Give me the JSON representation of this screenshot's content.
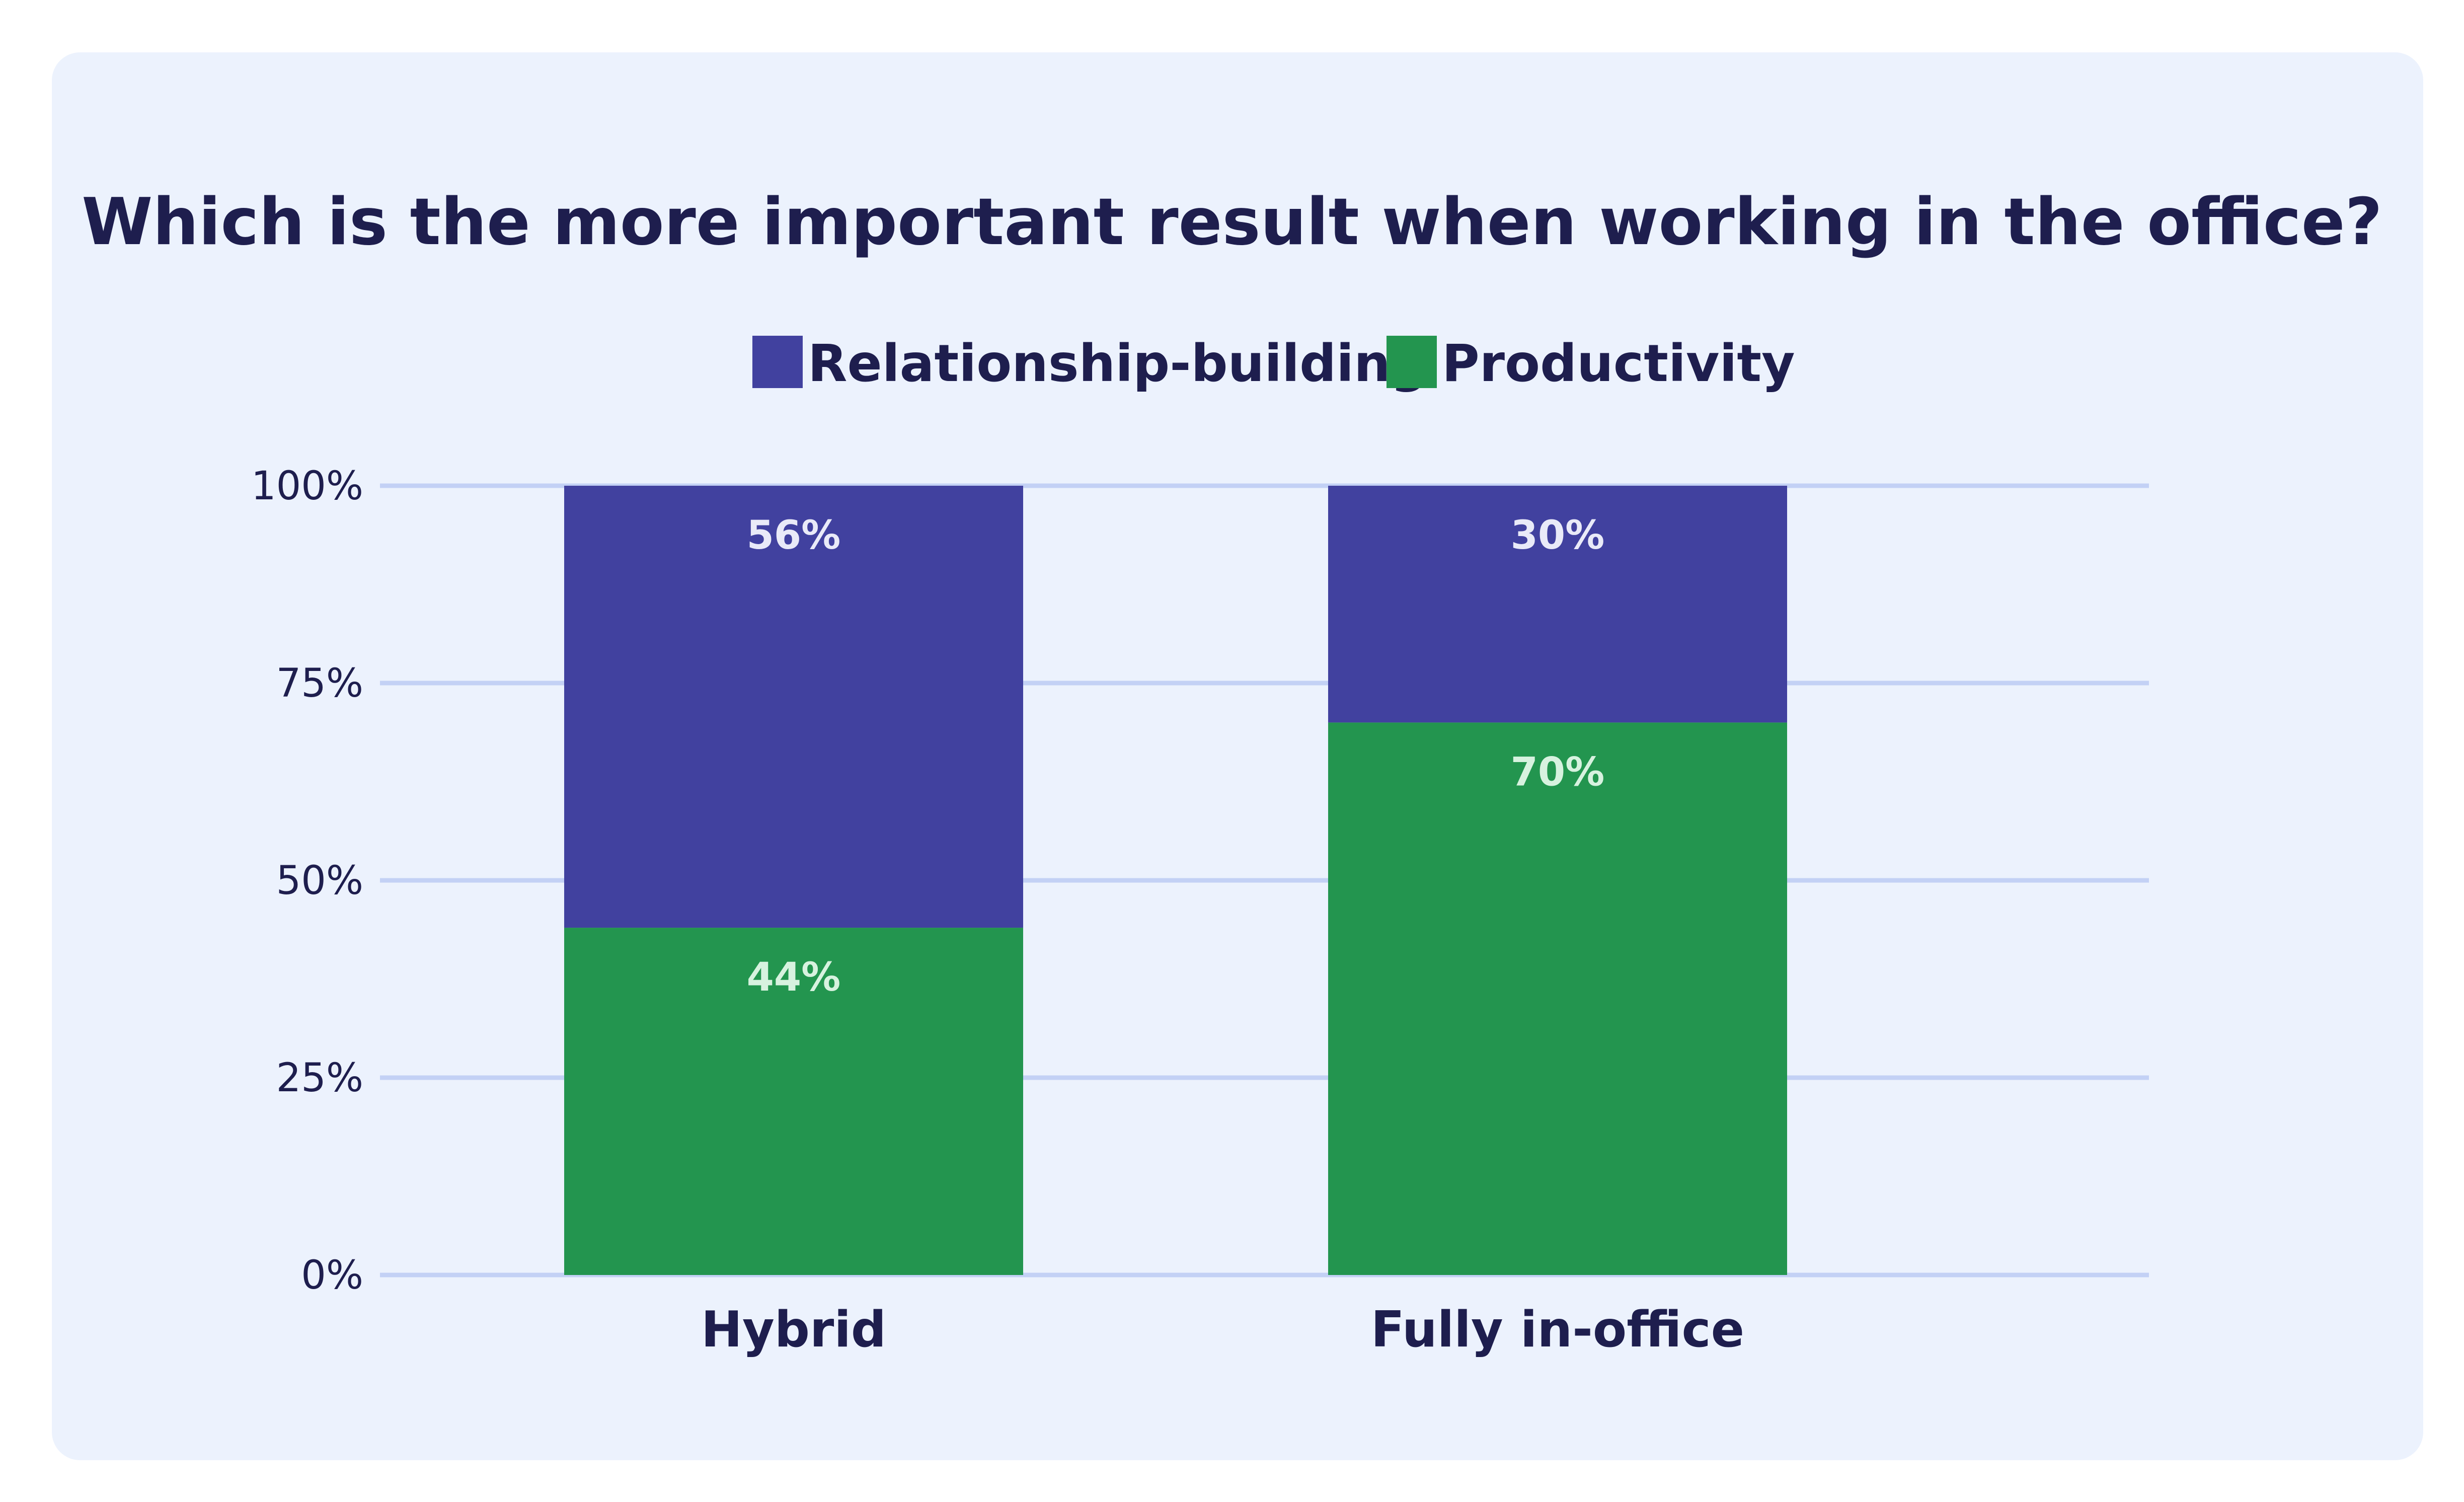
{
  "chart_data": {
    "type": "bar",
    "stacked": true,
    "title": "Which is the more important result when working in the office?",
    "categories": [
      "Hybrid",
      "Fully in-office"
    ],
    "series": [
      {
        "name": "Productivity",
        "values": [
          44,
          70
        ],
        "labels": [
          "44%",
          "70%"
        ],
        "color": "#23954f",
        "label_color": "#d7f2df"
      },
      {
        "name": "Relationship-building",
        "values": [
          56,
          30
        ],
        "labels": [
          "56%",
          "30%"
        ],
        "color": "#41419f",
        "label_color": "#e9eaf8"
      }
    ],
    "legend_order": [
      "Relationship-building",
      "Productivity"
    ],
    "legend_placement": "top-center",
    "ylim": [
      0,
      100
    ],
    "yticks": [
      0,
      25,
      50,
      75,
      100
    ],
    "ytick_labels": [
      "0%",
      "25%",
      "50%",
      "75%",
      "100%"
    ],
    "grid": true,
    "grid_color": "#c3d1f5",
    "xlabel": "",
    "ylabel": ""
  }
}
